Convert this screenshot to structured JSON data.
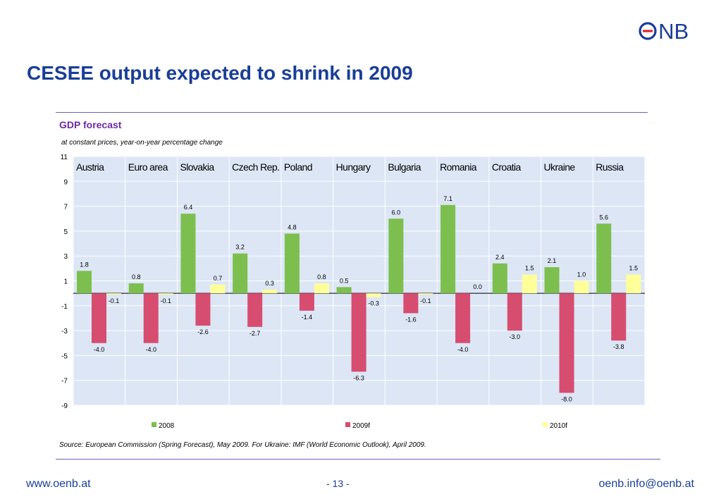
{
  "header": {
    "logo_text": "ONB",
    "title": "CESEE output expected to shrink in 2009"
  },
  "chart_data": {
    "type": "bar",
    "title": "GDP forecast",
    "subtitle": "at constant prices, year-on-year percentage change",
    "categories": [
      "Austria",
      "Euro area",
      "Slovakia",
      "Czech Rep.",
      "Poland",
      "Hungary",
      "Bulgaria",
      "Romania",
      "Croatia",
      "Ukraine",
      "Russia"
    ],
    "series": [
      {
        "name": "2008",
        "color": "#7dbf4e",
        "values": [
          1.8,
          0.8,
          6.4,
          3.2,
          4.8,
          0.5,
          6.0,
          7.1,
          2.4,
          2.1,
          5.6
        ]
      },
      {
        "name": "2009f",
        "color": "#d64d70",
        "values": [
          -4.0,
          -4.0,
          -2.6,
          -2.7,
          -1.4,
          -6.3,
          -1.6,
          -4.0,
          -3.0,
          -8.0,
          -3.8
        ]
      },
      {
        "name": "2010f",
        "color": "#ffff99",
        "values": [
          -0.1,
          -0.1,
          0.7,
          0.3,
          0.8,
          -0.3,
          -0.1,
          0.0,
          1.5,
          1.0,
          1.5
        ]
      }
    ],
    "value_labels": [
      [
        "1.8",
        "0.8",
        "6.4",
        "3.2",
        "4.8",
        "0.5",
        "6.0",
        "7.1",
        "2.4",
        "2.1",
        "5.6"
      ],
      [
        "-4.0",
        "-4.0",
        "-2.6",
        "-2.7",
        "-1.4",
        "-6.3",
        "-1.6",
        "-4.0",
        "-3.0",
        "-8.0",
        "-3.8"
      ],
      [
        "-0.1",
        "-0.1",
        "0.7",
        "0.3",
        "0.8",
        "-0.3",
        "-0.1",
        "0.0",
        "1.5",
        "1.0",
        "1.5"
      ]
    ],
    "ylim": [
      -9,
      11
    ],
    "yticks": [
      "11",
      "9",
      "7",
      "5",
      "3",
      "1",
      "-1",
      "-3",
      "-5",
      "-7",
      "-9"
    ],
    "ytick_values": [
      11,
      9,
      7,
      5,
      3,
      1,
      -1,
      -3,
      -5,
      -7,
      -9
    ],
    "grid": true,
    "legend": "bottom",
    "plot_background": "#dce6f5"
  },
  "source": "Source: European Commission (Spring Forecast), May 2009. For Ukraine: IMF (World Economic Outlook), April 2009.",
  "footer": {
    "left": "www.oenb.at",
    "page": "- 13 -",
    "right": "oenb.info@oenb.at"
  }
}
